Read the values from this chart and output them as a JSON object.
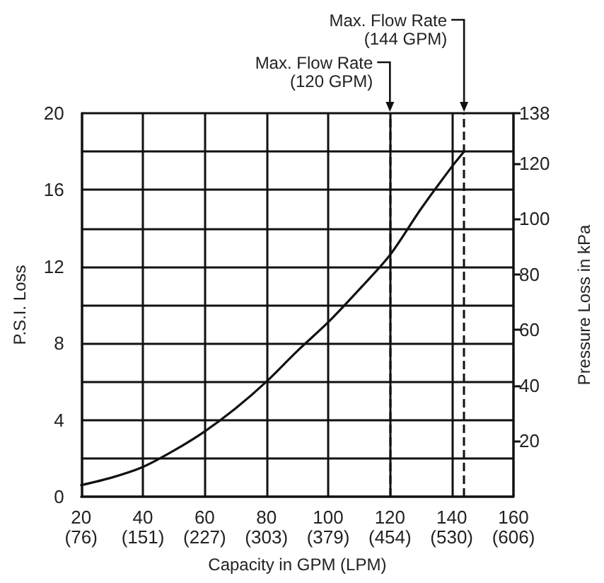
{
  "chart_data": {
    "type": "line",
    "xlabel": "Capacity in GPM (LPM)",
    "ylabel": "P.S.I. Loss",
    "y2label": "Pressure Loss in kPa",
    "x": [
      20,
      30,
      40,
      50,
      60,
      70,
      80,
      90,
      100,
      110,
      120,
      130,
      140,
      144
    ],
    "series": [
      {
        "color": "#111111",
        "values": [
          0.6,
          1.0,
          1.55,
          2.4,
          3.4,
          4.6,
          6,
          7.6,
          9.1,
          10.8,
          12.6,
          15,
          17.2,
          18
        ]
      }
    ],
    "xlim": [
      20,
      160
    ],
    "xticks": [
      20,
      40,
      60,
      80,
      100,
      120,
      140,
      160
    ],
    "x2lim": [
      75.7,
      605.6
    ],
    "x2ticks": [
      {
        "value": 75.7,
        "label": "(76)"
      },
      {
        "value": 151.4,
        "label": "(151)"
      },
      {
        "value": 227.1,
        "label": "(227)"
      },
      {
        "value": 302.8,
        "label": "(303)"
      },
      {
        "value": 378.5,
        "label": "(379)"
      },
      {
        "value": 454.2,
        "label": "(454)"
      },
      {
        "value": 529.9,
        "label": "(530)"
      },
      {
        "value": 605.6,
        "label": "(606)"
      }
    ],
    "ylim": [
      0,
      20
    ],
    "yticks": [
      0,
      {
        "value": 2,
        "label": null
      },
      4,
      {
        "value": 6,
        "label": null
      },
      8,
      {
        "value": 10,
        "label": null
      },
      12,
      {
        "value": 14,
        "label": null
      },
      16,
      {
        "value": 18,
        "label": null
      },
      20
    ],
    "y2lim": [
      0,
      138
    ],
    "y2ticks": [
      20,
      40,
      60,
      80,
      100,
      120,
      138
    ],
    "ref_lines": [
      {
        "axis": "x",
        "value": 120,
        "label": "Max. Flow Rate\n(120 GPM)",
        "line_style": "dashed"
      },
      {
        "axis": "x",
        "value": 144,
        "label": "Max. Flow Rate\n(144 GPM)",
        "line_style": "dashed"
      }
    ],
    "grid": true,
    "marker": "none",
    "line_style": "solid"
  }
}
